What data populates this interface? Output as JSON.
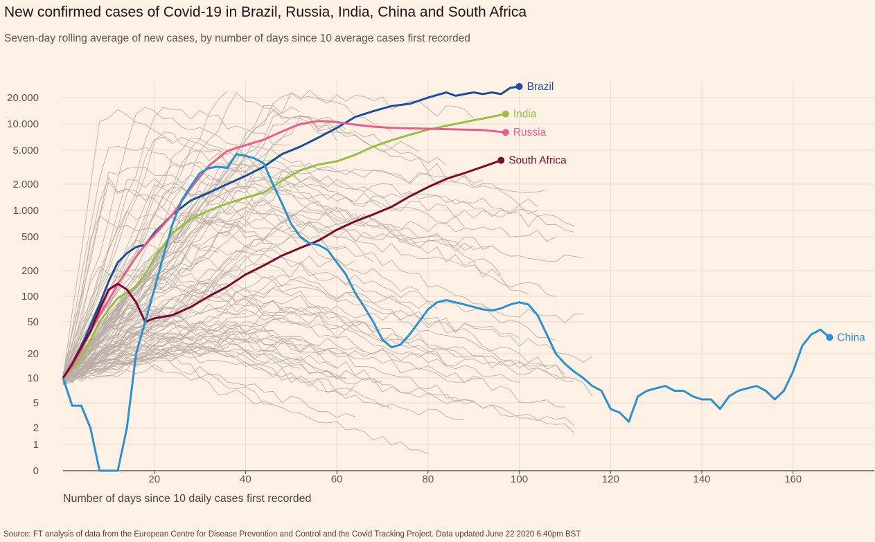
{
  "header": {
    "title": "New confirmed cases of Covid-19 in Brazil, Russia, India, China and South Africa",
    "subtitle": "Seven-day rolling average of new cases, by number of days since 10 average cases first recorded"
  },
  "footer": {
    "source": "Source: FT analysis of data from the European Centre for Disease Prevention and Control and the Covid Tracking Project. Data updated June 22 2020 6.40pm BST"
  },
  "chart_data": {
    "type": "line",
    "title": "New confirmed cases of Covid-19 in Brazil, Russia, India, China and South Africa",
    "subtitle": "Seven-day rolling average of new cases, by number of days since 10 average cases first recorded",
    "xlabel": "Number of days since 10 daily cases first recorded",
    "ylabel": "",
    "y_scale": "log",
    "xlim": [
      0,
      176
    ],
    "ylim": [
      0,
      30000
    ],
    "x_ticks": [
      20,
      40,
      60,
      80,
      100,
      120,
      140,
      160
    ],
    "x_tick_labels": [
      "20",
      "40",
      "60",
      "80",
      "100",
      "120",
      "140",
      "160"
    ],
    "y_ticks": [
      0,
      1,
      2,
      5,
      10,
      20,
      50,
      100,
      200,
      500,
      1000,
      2000,
      5000,
      10000,
      20000
    ],
    "y_tick_labels": [
      "0",
      "1",
      "2",
      "5",
      "10",
      "20",
      "50",
      "100",
      "200",
      "500",
      "1.000",
      "2.000",
      "5.000",
      "10.000",
      "20.000"
    ],
    "grid": true,
    "legend": "direct labels at line ends",
    "background_series_color": "#b8aca4",
    "series": [
      {
        "name": "Brazil",
        "color": "#1e4f96",
        "x": [
          0,
          2,
          4,
          6,
          8,
          10,
          12,
          14,
          16,
          18,
          20,
          24,
          28,
          32,
          36,
          40,
          44,
          48,
          52,
          56,
          60,
          64,
          68,
          72,
          76,
          80,
          84,
          86,
          88,
          90,
          92,
          94,
          96,
          98,
          100
        ],
        "y": [
          10,
          15,
          25,
          45,
          80,
          150,
          250,
          320,
          380,
          400,
          550,
          900,
          1300,
          1600,
          2000,
          2500,
          3200,
          4500,
          5500,
          7000,
          9000,
          12000,
          14000,
          16000,
          17000,
          20000,
          23000,
          21000,
          22000,
          23000,
          22000,
          23000,
          22000,
          26000,
          27000
        ]
      },
      {
        "name": "India",
        "color": "#96bf48",
        "x": [
          0,
          2,
          4,
          6,
          8,
          10,
          12,
          14,
          16,
          18,
          20,
          24,
          28,
          32,
          36,
          40,
          44,
          48,
          52,
          56,
          60,
          64,
          68,
          72,
          76,
          80,
          84,
          88,
          92,
          97
        ],
        "y": [
          10,
          13,
          18,
          30,
          50,
          70,
          95,
          110,
          130,
          180,
          280,
          550,
          800,
          1000,
          1200,
          1400,
          1600,
          2200,
          2900,
          3400,
          3700,
          4400,
          5500,
          6500,
          7500,
          8600,
          9500,
          10500,
          11500,
          13000
        ]
      },
      {
        "name": "Russia",
        "color": "#e5608d",
        "x": [
          0,
          2,
          4,
          6,
          8,
          10,
          12,
          14,
          16,
          18,
          20,
          24,
          28,
          32,
          36,
          40,
          44,
          48,
          52,
          56,
          60,
          64,
          68,
          72,
          76,
          80,
          84,
          88,
          92,
          97
        ],
        "y": [
          10,
          14,
          22,
          38,
          60,
          90,
          140,
          200,
          290,
          400,
          520,
          900,
          1800,
          3300,
          4900,
          5700,
          6600,
          8200,
          10000,
          10800,
          10500,
          9800,
          9300,
          9000,
          8900,
          8800,
          8700,
          8600,
          8500,
          8000
        ]
      },
      {
        "name": "South Africa",
        "color": "#7a0a2e",
        "x": [
          0,
          2,
          4,
          6,
          8,
          10,
          12,
          14,
          16,
          18,
          20,
          24,
          28,
          32,
          36,
          40,
          44,
          48,
          52,
          56,
          60,
          64,
          68,
          72,
          76,
          80,
          84,
          88,
          92,
          96
        ],
        "y": [
          10,
          15,
          24,
          38,
          70,
          120,
          140,
          120,
          85,
          50,
          55,
          60,
          75,
          100,
          130,
          180,
          230,
          300,
          370,
          450,
          600,
          750,
          900,
          1100,
          1450,
          1850,
          2300,
          2700,
          3200,
          3800
        ]
      },
      {
        "name": "China",
        "color": "#2d8fcc",
        "x": [
          0,
          2,
          4,
          6,
          8,
          10,
          12,
          14,
          16,
          18,
          20,
          22,
          24,
          26,
          28,
          30,
          32,
          34,
          36,
          38,
          40,
          42,
          44,
          46,
          48,
          50,
          52,
          54,
          56,
          58,
          60,
          62,
          64,
          66,
          68,
          70,
          72,
          74,
          76,
          78,
          80,
          82,
          84,
          86,
          88,
          90,
          92,
          94,
          96,
          98,
          100,
          102,
          104,
          106,
          108,
          110,
          112,
          114,
          116,
          118,
          120,
          122,
          124,
          126,
          128,
          130,
          132,
          134,
          136,
          138,
          140,
          142,
          144,
          146,
          148,
          150,
          152,
          154,
          156,
          158,
          160,
          162,
          164,
          166,
          168
        ],
        "y": [
          10,
          4.5,
          4.5,
          2,
          0,
          0,
          0,
          2,
          20,
          50,
          120,
          300,
          700,
          1300,
          1900,
          2700,
          3100,
          3200,
          3100,
          4500,
          4300,
          4000,
          3500,
          2000,
          1200,
          700,
          500,
          420,
          400,
          350,
          250,
          180,
          110,
          75,
          50,
          30,
          24,
          26,
          35,
          50,
          70,
          85,
          90,
          85,
          80,
          75,
          70,
          68,
          72,
          80,
          85,
          80,
          60,
          35,
          20,
          15,
          12,
          10,
          8,
          7,
          4,
          3.5,
          2.5,
          6,
          7,
          7.5,
          8,
          7,
          7,
          6,
          5.5,
          5.5,
          4,
          6,
          7,
          7.5,
          8,
          7,
          5.5,
          7,
          12,
          25,
          35,
          40,
          32
        ]
      }
    ]
  }
}
